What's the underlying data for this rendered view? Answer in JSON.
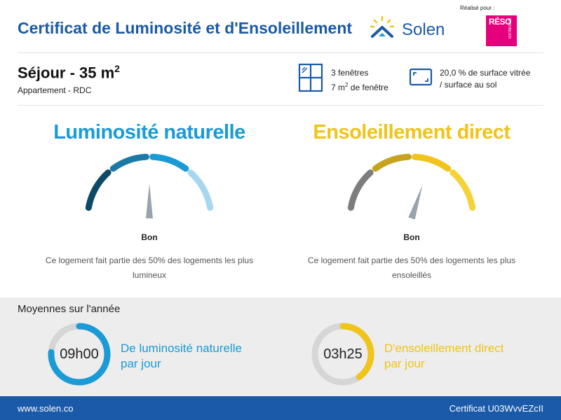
{
  "header": {
    "title": "Certificat de Luminosité et d'Ensoleillement",
    "brand": "Solen",
    "realise_pour": "Réalisé pour :",
    "client_logo_text": "RÉSO",
    "client_logo_subtext": "IMMOBILIER"
  },
  "room": {
    "title": "Séjour - 35 m",
    "title_exponent": "2",
    "subtitle": "Appartement - RDC"
  },
  "stats": {
    "windows_count": "3 fenêtres",
    "windows_area": "7 m",
    "windows_area_exponent": "2",
    "windows_area_suffix": " de fenêtre",
    "glazing_line1": "20,0 % de surface vitrée",
    "glazing_line2": "/ surface au sol"
  },
  "luminosite": {
    "title": "Luminosité naturelle",
    "rating": "Bon",
    "description": "Ce logement fait partie des 50% des logements les plus lumineux",
    "needle_fraction": 0.5,
    "color": "#1a9ad6"
  },
  "ensoleillement": {
    "title": "Ensoleillement direct",
    "rating": "Bon",
    "description": "Ce logement fait partie des 50% des logements les plus ensoleillés",
    "needle_fraction": 0.6,
    "color": "#f0c419"
  },
  "averages": {
    "title": "Moyennes sur l'année",
    "luminosite_value": "09h00",
    "luminosite_fraction": 0.76,
    "luminosite_label_1": "De luminosité naturelle",
    "luminosite_label_2": "par jour",
    "ensoleillement_value": "03h25",
    "ensoleillement_fraction": 0.4,
    "ensoleillement_label_1": "D'ensoleillement direct",
    "ensoleillement_label_2": "par jour"
  },
  "footer": {
    "website": "www.solen.co",
    "certificate_id": "Certificat U03WvvEZcII"
  },
  "colors": {
    "brand_blue": "#1a5aa8",
    "light_blue": "#1a9ad6",
    "yellow": "#f0c419",
    "magenta": "#e4007c"
  }
}
